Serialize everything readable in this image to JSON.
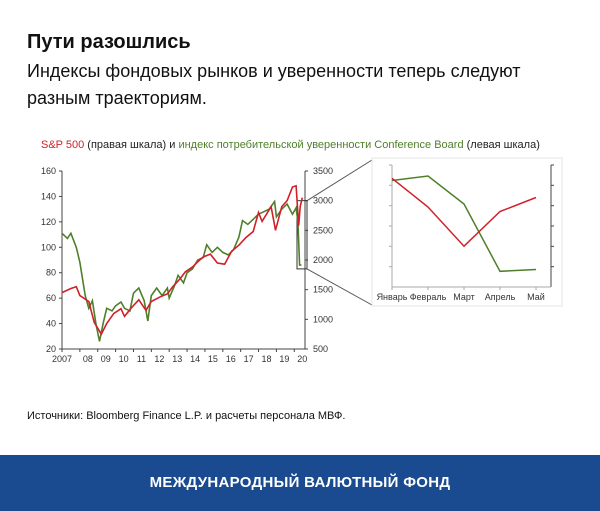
{
  "title": "Пути разошлись",
  "subtitle": "Индексы фондовых рынков и уверенности теперь следуют разным траекториям.",
  "source": "Источники: Bloomberg Finance L.P. и расчеты персонала МВФ.",
  "footer": "МЕЖДУНАРОДНЫЙ ВАЛЮТНЫЙ ФОНД",
  "chart_data": [
    {
      "type": "line",
      "title_parts": {
        "sp": "S&P 500",
        "sp_note": " (правая шкала) и ",
        "cb": "индекс потребительской уверенности Conference Board",
        "cb_note": " (левая шкала)"
      },
      "colors": {
        "sp": "#d0202a",
        "cb": "#4f7f2a"
      },
      "x_ticks": [
        "2007",
        "08",
        "09",
        "10",
        "11",
        "12",
        "13",
        "14",
        "15",
        "16",
        "17",
        "18",
        "19",
        "20"
      ],
      "xlim": [
        2007,
        2020.6
      ],
      "left_ylim": [
        20,
        160
      ],
      "left_ticks": [
        20,
        40,
        60,
        80,
        100,
        120,
        140,
        160
      ],
      "right_ylim": [
        500,
        3500
      ],
      "right_ticks": [
        500,
        1000,
        1500,
        2000,
        2500,
        3000,
        3500
      ],
      "series": [
        {
          "name": "индекс потребительской уверенности Conference Board",
          "axis": "left",
          "x": [
            2007.0,
            2007.3,
            2007.5,
            2007.8,
            2008.0,
            2008.3,
            2008.5,
            2008.7,
            2008.9,
            2009.1,
            2009.3,
            2009.5,
            2009.8,
            2010.0,
            2010.3,
            2010.5,
            2010.8,
            2011.0,
            2011.3,
            2011.6,
            2011.8,
            2012.0,
            2012.3,
            2012.6,
            2012.9,
            2013.0,
            2013.3,
            2013.5,
            2013.8,
            2014.0,
            2014.3,
            2014.6,
            2014.9,
            2015.1,
            2015.4,
            2015.7,
            2016.0,
            2016.3,
            2016.6,
            2016.9,
            2017.1,
            2017.4,
            2017.7,
            2018.0,
            2018.3,
            2018.6,
            2018.9,
            2019.0,
            2019.3,
            2019.6,
            2019.9,
            2020.1,
            2020.2,
            2020.3,
            2020.4
          ],
          "y": [
            111,
            107,
            111,
            100,
            88,
            62,
            52,
            58,
            40,
            26,
            40,
            52,
            50,
            54,
            57,
            52,
            50,
            64,
            68,
            58,
            42,
            62,
            68,
            62,
            68,
            60,
            70,
            78,
            72,
            80,
            83,
            90,
            92,
            102,
            96,
            100,
            96,
            94,
            98,
            108,
            121,
            118,
            122,
            126,
            128,
            130,
            136,
            124,
            130,
            134,
            126,
            131,
            120,
            86,
            86
          ]
        },
        {
          "name": "S&P 500",
          "axis": "right",
          "x": [
            2007.0,
            2007.5,
            2007.8,
            2008.0,
            2008.5,
            2008.8,
            2009.2,
            2009.5,
            2009.9,
            2010.3,
            2010.5,
            2010.9,
            2011.3,
            2011.7,
            2012.0,
            2012.5,
            2012.9,
            2013.2,
            2013.6,
            2013.9,
            2014.3,
            2014.6,
            2014.9,
            2015.3,
            2015.7,
            2016.1,
            2016.5,
            2016.9,
            2017.3,
            2017.7,
            2018.0,
            2018.2,
            2018.7,
            2018.95,
            2019.3,
            2019.6,
            2019.9,
            2020.1,
            2020.25,
            2020.33,
            2020.45
          ],
          "y": [
            1450,
            1520,
            1550,
            1400,
            1300,
            950,
            750,
            930,
            1100,
            1180,
            1050,
            1200,
            1330,
            1150,
            1300,
            1380,
            1430,
            1550,
            1680,
            1800,
            1880,
            1970,
            2050,
            2100,
            1950,
            1930,
            2150,
            2250,
            2380,
            2480,
            2800,
            2650,
            2900,
            2500,
            2900,
            3000,
            3230,
            3250,
            2580,
            2900,
            3050
          ]
        }
      ]
    },
    {
      "type": "line",
      "inset": true,
      "categories": [
        "Январь",
        "Февраль",
        "Март",
        "Апрель",
        "Май"
      ],
      "series": [
        {
          "name": "индекс потребительской уверенности Conference Board",
          "axis": "left",
          "values": [
            130.4,
            132.6,
            118.8,
            85.7,
            86.6
          ]
        },
        {
          "name": "S&P 500",
          "axis": "right",
          "values": [
            3225,
            2954,
            2585,
            2912,
            3044
          ]
        }
      ]
    }
  ]
}
